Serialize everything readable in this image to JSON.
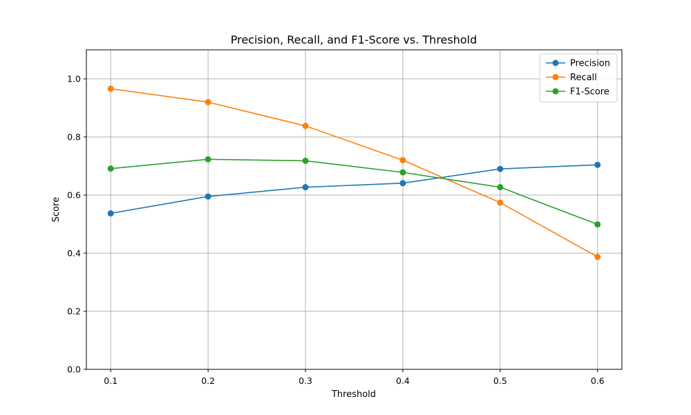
{
  "chart_data": {
    "type": "line",
    "title": "Precision, Recall, and F1-Score vs. Threshold",
    "xlabel": "Threshold",
    "ylabel": "Score",
    "x": [
      0.1,
      0.2,
      0.3,
      0.4,
      0.5,
      0.6
    ],
    "xlim": [
      0.075,
      0.625
    ],
    "ylim": [
      0,
      1.1
    ],
    "xticks": [
      "0.1",
      "0.2",
      "0.3",
      "0.4",
      "0.5",
      "0.6"
    ],
    "yticks": [
      "0.0",
      "0.2",
      "0.4",
      "0.6",
      "0.8",
      "1.0"
    ],
    "grid": true,
    "legend_position": "top-right",
    "series": [
      {
        "name": "Precision",
        "color": "#1f77b4",
        "values": [
          0.537,
          0.595,
          0.627,
          0.641,
          0.69,
          0.704
        ]
      },
      {
        "name": "Recall",
        "color": "#ff7f0e",
        "values": [
          0.966,
          0.92,
          0.838,
          0.72,
          0.574,
          0.387
        ]
      },
      {
        "name": "F1-Score",
        "color": "#2ca02c",
        "values": [
          0.691,
          0.723,
          0.718,
          0.678,
          0.627,
          0.499
        ]
      }
    ]
  }
}
